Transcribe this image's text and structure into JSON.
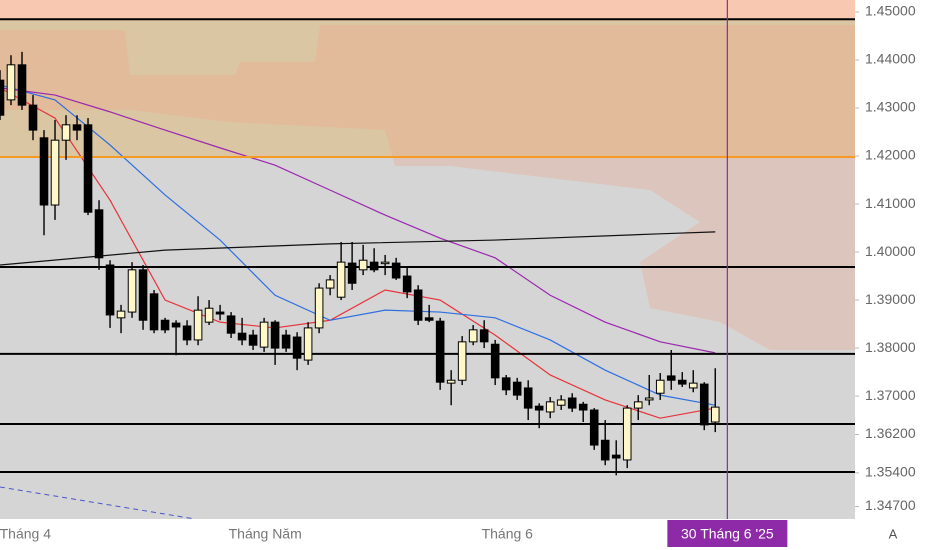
{
  "chart_data": {
    "type": "candlestick",
    "up_color": "#fff7c8",
    "down_color": "#000000",
    "xlim": [
      0,
      77.7
    ],
    "ylim": [
      1.3444,
      1.4525
    ],
    "yticks": [
      {
        "value": 1.45,
        "label": "1.45000"
      },
      {
        "value": 1.44,
        "label": "1.44000"
      },
      {
        "value": 1.43,
        "label": "1.43000"
      },
      {
        "value": 1.42,
        "label": "1.42000"
      },
      {
        "value": 1.41,
        "label": "1.41000"
      },
      {
        "value": 1.4,
        "label": "1.40000"
      },
      {
        "value": 1.39,
        "label": "1.39000"
      },
      {
        "value": 1.38,
        "label": "1.38000"
      },
      {
        "value": 1.37,
        "label": "1.37000"
      },
      {
        "value": 1.362,
        "label": "1.36200"
      },
      {
        "value": 1.354,
        "label": "1.35400"
      },
      {
        "value": 1.347,
        "label": "1.34700"
      }
    ],
    "xticks": [
      {
        "value": 2.3,
        "label": "Tháng 4"
      },
      {
        "value": 24.1,
        "label": "Tháng Năm"
      },
      {
        "value": 46.1,
        "label": "Tháng 6"
      }
    ],
    "cursor": {
      "value": 66.1,
      "label": "30 Tháng 6 '25",
      "color": "#8e2aa8"
    },
    "auto_scale_button": "A",
    "zones": [
      {
        "from": 1.4485,
        "to": 1.4525,
        "color": "#f8c8b1"
      },
      {
        "from": 1.4198,
        "to": 1.4485,
        "color": "#dbc6a3"
      },
      {
        "from": 1.3444,
        "to": 1.4198,
        "color": "#d5d5d5"
      }
    ],
    "levels": [
      {
        "value": 1.4485,
        "color": "#000000"
      },
      {
        "value": 1.4198,
        "color": "#f59a23"
      },
      {
        "value": 1.3969,
        "color": "#000000"
      },
      {
        "value": 1.3788,
        "color": "#000000"
      },
      {
        "value": 1.3642,
        "color": "#000000"
      },
      {
        "value": 1.3542,
        "color": "#000000"
      }
    ],
    "ohlc": [
      [
        1.4358,
        1.4379,
        1.4275,
        1.4285
      ],
      [
        1.4317,
        1.441,
        1.4306,
        1.439
      ],
      [
        1.439,
        1.4417,
        1.4296,
        1.4306
      ],
      [
        1.4306,
        1.4327,
        1.4233,
        1.4254
      ],
      [
        1.4238,
        1.4254,
        1.4035,
        1.4098
      ],
      [
        1.4098,
        1.4275,
        1.4067,
        1.4233
      ],
      [
        1.4233,
        1.4285,
        1.4192,
        1.4265
      ],
      [
        1.4265,
        1.4285,
        1.4233,
        1.4254
      ],
      [
        1.4265,
        1.4279,
        1.4077,
        1.4083
      ],
      [
        1.4088,
        1.4108,
        1.3963,
        1.3988
      ],
      [
        1.3973,
        1.3983,
        1.3842,
        1.3869
      ],
      [
        1.3863,
        1.389,
        1.3831,
        1.3877
      ],
      [
        1.3875,
        1.3979,
        1.3863,
        1.3963
      ],
      [
        1.3963,
        1.3973,
        1.3838,
        1.3858
      ],
      [
        1.3913,
        1.3921,
        1.3831,
        1.3838
      ],
      [
        1.3858,
        1.3863,
        1.3831,
        1.3838
      ],
      [
        1.3852,
        1.3858,
        1.3785,
        1.3844
      ],
      [
        1.3846,
        1.3858,
        1.3806,
        1.3817
      ],
      [
        1.3817,
        1.3908,
        1.3806,
        1.3879
      ],
      [
        1.3854,
        1.39,
        1.3848,
        1.3883
      ],
      [
        1.3875,
        1.389,
        1.3858,
        1.3871
      ],
      [
        1.3867,
        1.3875,
        1.3821,
        1.3831
      ],
      [
        1.3831,
        1.3863,
        1.3806,
        1.3817
      ],
      [
        1.3827,
        1.3838,
        1.3796,
        1.3806
      ],
      [
        1.3802,
        1.3863,
        1.3792,
        1.3854
      ],
      [
        1.3854,
        1.3858,
        1.3765,
        1.38
      ],
      [
        1.3827,
        1.3838,
        1.3792,
        1.38
      ],
      [
        1.3823,
        1.3833,
        1.3754,
        1.3779
      ],
      [
        1.3775,
        1.3854,
        1.3765,
        1.3842
      ],
      [
        1.3842,
        1.3935,
        1.3831,
        1.3925
      ],
      [
        1.3925,
        1.3952,
        1.391,
        1.3942
      ],
      [
        1.3906,
        1.4021,
        1.39,
        1.3979
      ],
      [
        1.3977,
        1.4021,
        1.3921,
        1.3935
      ],
      [
        1.3963,
        1.4015,
        1.3952,
        1.3983
      ],
      [
        1.3979,
        1.4008,
        1.3958,
        1.3963
      ],
      [
        1.3977,
        1.3994,
        1.3952,
        1.3979
      ],
      [
        1.3977,
        1.3988,
        1.3942,
        1.3946
      ],
      [
        1.395,
        1.3967,
        1.3904,
        1.3917
      ],
      [
        1.3921,
        1.3931,
        1.3848,
        1.3858
      ],
      [
        1.3863,
        1.389,
        1.3854,
        1.3858
      ],
      [
        1.3856,
        1.3863,
        1.3713,
        1.3729
      ],
      [
        1.3727,
        1.3754,
        1.3681,
        1.3733
      ],
      [
        1.3733,
        1.3825,
        1.3723,
        1.3813
      ],
      [
        1.3813,
        1.3848,
        1.3806,
        1.3838
      ],
      [
        1.3838,
        1.3858,
        1.38,
        1.3813
      ],
      [
        1.3808,
        1.3817,
        1.3723,
        1.3738
      ],
      [
        1.3738,
        1.3744,
        1.3702,
        1.3713
      ],
      [
        1.3729,
        1.3738,
        1.3692,
        1.3702
      ],
      [
        1.3717,
        1.3733,
        1.365,
        1.3675
      ],
      [
        1.3679,
        1.3685,
        1.3633,
        1.3671
      ],
      [
        1.3667,
        1.3698,
        1.3654,
        1.3688
      ],
      [
        1.3681,
        1.3702,
        1.3671,
        1.3692
      ],
      [
        1.3696,
        1.3706,
        1.3667,
        1.3675
      ],
      [
        1.3683,
        1.3688,
        1.3646,
        1.3671
      ],
      [
        1.3671,
        1.3675,
        1.3588,
        1.3598
      ],
      [
        1.3608,
        1.365,
        1.3556,
        1.3567
      ],
      [
        1.3577,
        1.3608,
        1.3535,
        1.3571
      ],
      [
        1.3567,
        1.3681,
        1.355,
        1.3675
      ],
      [
        1.3675,
        1.3702,
        1.365,
        1.3688
      ],
      [
        1.3692,
        1.3744,
        1.3681,
        1.3696
      ],
      [
        1.3706,
        1.3748,
        1.3692,
        1.3733
      ],
      [
        1.3742,
        1.3796,
        1.3713,
        1.3733
      ],
      [
        1.3733,
        1.375,
        1.3719,
        1.3725
      ],
      [
        1.3717,
        1.3754,
        1.3708,
        1.3727
      ],
      [
        1.3725,
        1.3729,
        1.3629,
        1.364
      ],
      [
        1.3646,
        1.3758,
        1.3625,
        1.3677
      ]
    ],
    "lines": [
      {
        "color": "#e8333a",
        "x": [
          0,
          5,
          10,
          15,
          20,
          25,
          30,
          35,
          40,
          45,
          50,
          55,
          60,
          65
        ],
        "values": [
          1.4342,
          1.4279,
          1.4108,
          1.39,
          1.3854,
          1.3842,
          1.3858,
          1.3921,
          1.39,
          1.3827,
          1.3744,
          1.3692,
          1.3654,
          1.3675
        ]
      },
      {
        "color": "#2f6fe0",
        "x": [
          0,
          5,
          10,
          15,
          20,
          25,
          30,
          35,
          40,
          45,
          50,
          55,
          60,
          65
        ],
        "values": [
          1.4348,
          1.4317,
          1.4223,
          1.4119,
          1.4025,
          1.391,
          1.3858,
          1.3879,
          1.3875,
          1.3863,
          1.3817,
          1.3754,
          1.3702,
          1.3681
        ]
      },
      {
        "color": "#9b27b0",
        "x": [
          0,
          5,
          10,
          15,
          20,
          25,
          30,
          35,
          40,
          45,
          50,
          55,
          60,
          65
        ],
        "values": [
          1.4342,
          1.4327,
          1.4292,
          1.4254,
          1.4217,
          1.4181,
          1.4129,
          1.4077,
          1.4029,
          1.3988,
          1.391,
          1.3854,
          1.3813,
          1.379
        ]
      },
      {
        "color": "#111111",
        "x": [
          0,
          15,
          30,
          45,
          60,
          65
        ],
        "values": [
          1.3973,
          1.4004,
          1.4017,
          1.4025,
          1.4038,
          1.4042
        ]
      }
    ]
  }
}
